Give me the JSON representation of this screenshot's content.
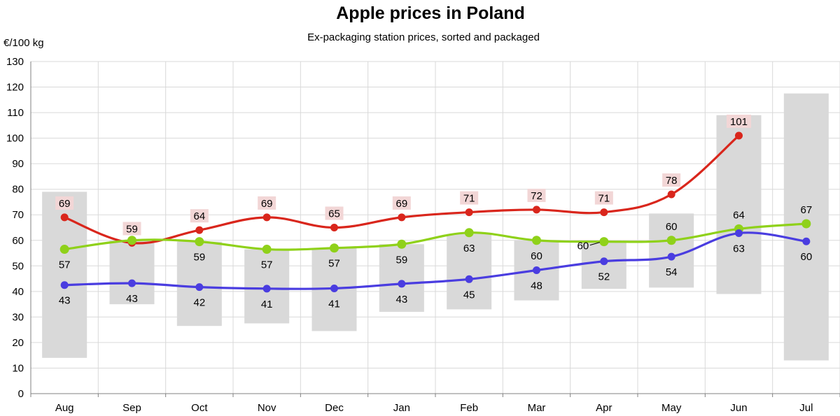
{
  "chart_data": {
    "type": "line",
    "title": "Apple prices in Poland",
    "subtitle": "Ex-packaging station prices, sorted and packaged",
    "ylabel": "€/100 kg",
    "ylim": [
      0,
      130
    ],
    "yticks": [
      0,
      10,
      20,
      30,
      40,
      50,
      60,
      70,
      80,
      90,
      100,
      110,
      120,
      130
    ],
    "categories": [
      "Aug",
      "Sep",
      "Oct",
      "Nov",
      "Dec",
      "Jan",
      "Feb",
      "Mar",
      "Apr",
      "May",
      "Jun",
      "Jul"
    ],
    "range_bars": {
      "low": [
        14,
        35,
        26.5,
        27.5,
        24.5,
        32,
        33,
        36.5,
        41,
        41.5,
        39,
        13
      ],
      "high": [
        79,
        60,
        59.5,
        56.5,
        57,
        58.5,
        62.5,
        60,
        59.5,
        70.5,
        109,
        117.5
      ],
      "color": "#d9d9d9"
    },
    "series": [
      {
        "values": [
          69,
          59,
          64,
          69,
          65,
          69,
          71,
          72,
          71,
          78,
          101,
          null
        ],
        "labels": [
          "69",
          "59",
          "64",
          "69",
          "65",
          "69",
          "71",
          "72",
          "71",
          "78",
          "101",
          ""
        ],
        "label_position": "above",
        "color": "#d9261c"
      },
      {
        "values": [
          56.5,
          60,
          59.5,
          56.5,
          57,
          58.5,
          63,
          60,
          59.5,
          60,
          64.5,
          66.5
        ],
        "labels": [
          "57",
          "",
          "59",
          "57",
          "57",
          "59",
          "63",
          "60",
          "60",
          "60",
          "64",
          "67"
        ],
        "label_position": "mixed",
        "color": "#8fd11a"
      },
      {
        "values": [
          42.5,
          43.2,
          41.7,
          41.1,
          41.2,
          43,
          44.8,
          48.3,
          51.8,
          53.6,
          62.8,
          59.6
        ],
        "labels": [
          "43",
          "43",
          "42",
          "41",
          "41",
          "43",
          "45",
          "48",
          "52",
          "54",
          "63",
          "60"
        ],
        "label_position": "below",
        "color": "#4a3de0"
      }
    ],
    "grid": true
  }
}
